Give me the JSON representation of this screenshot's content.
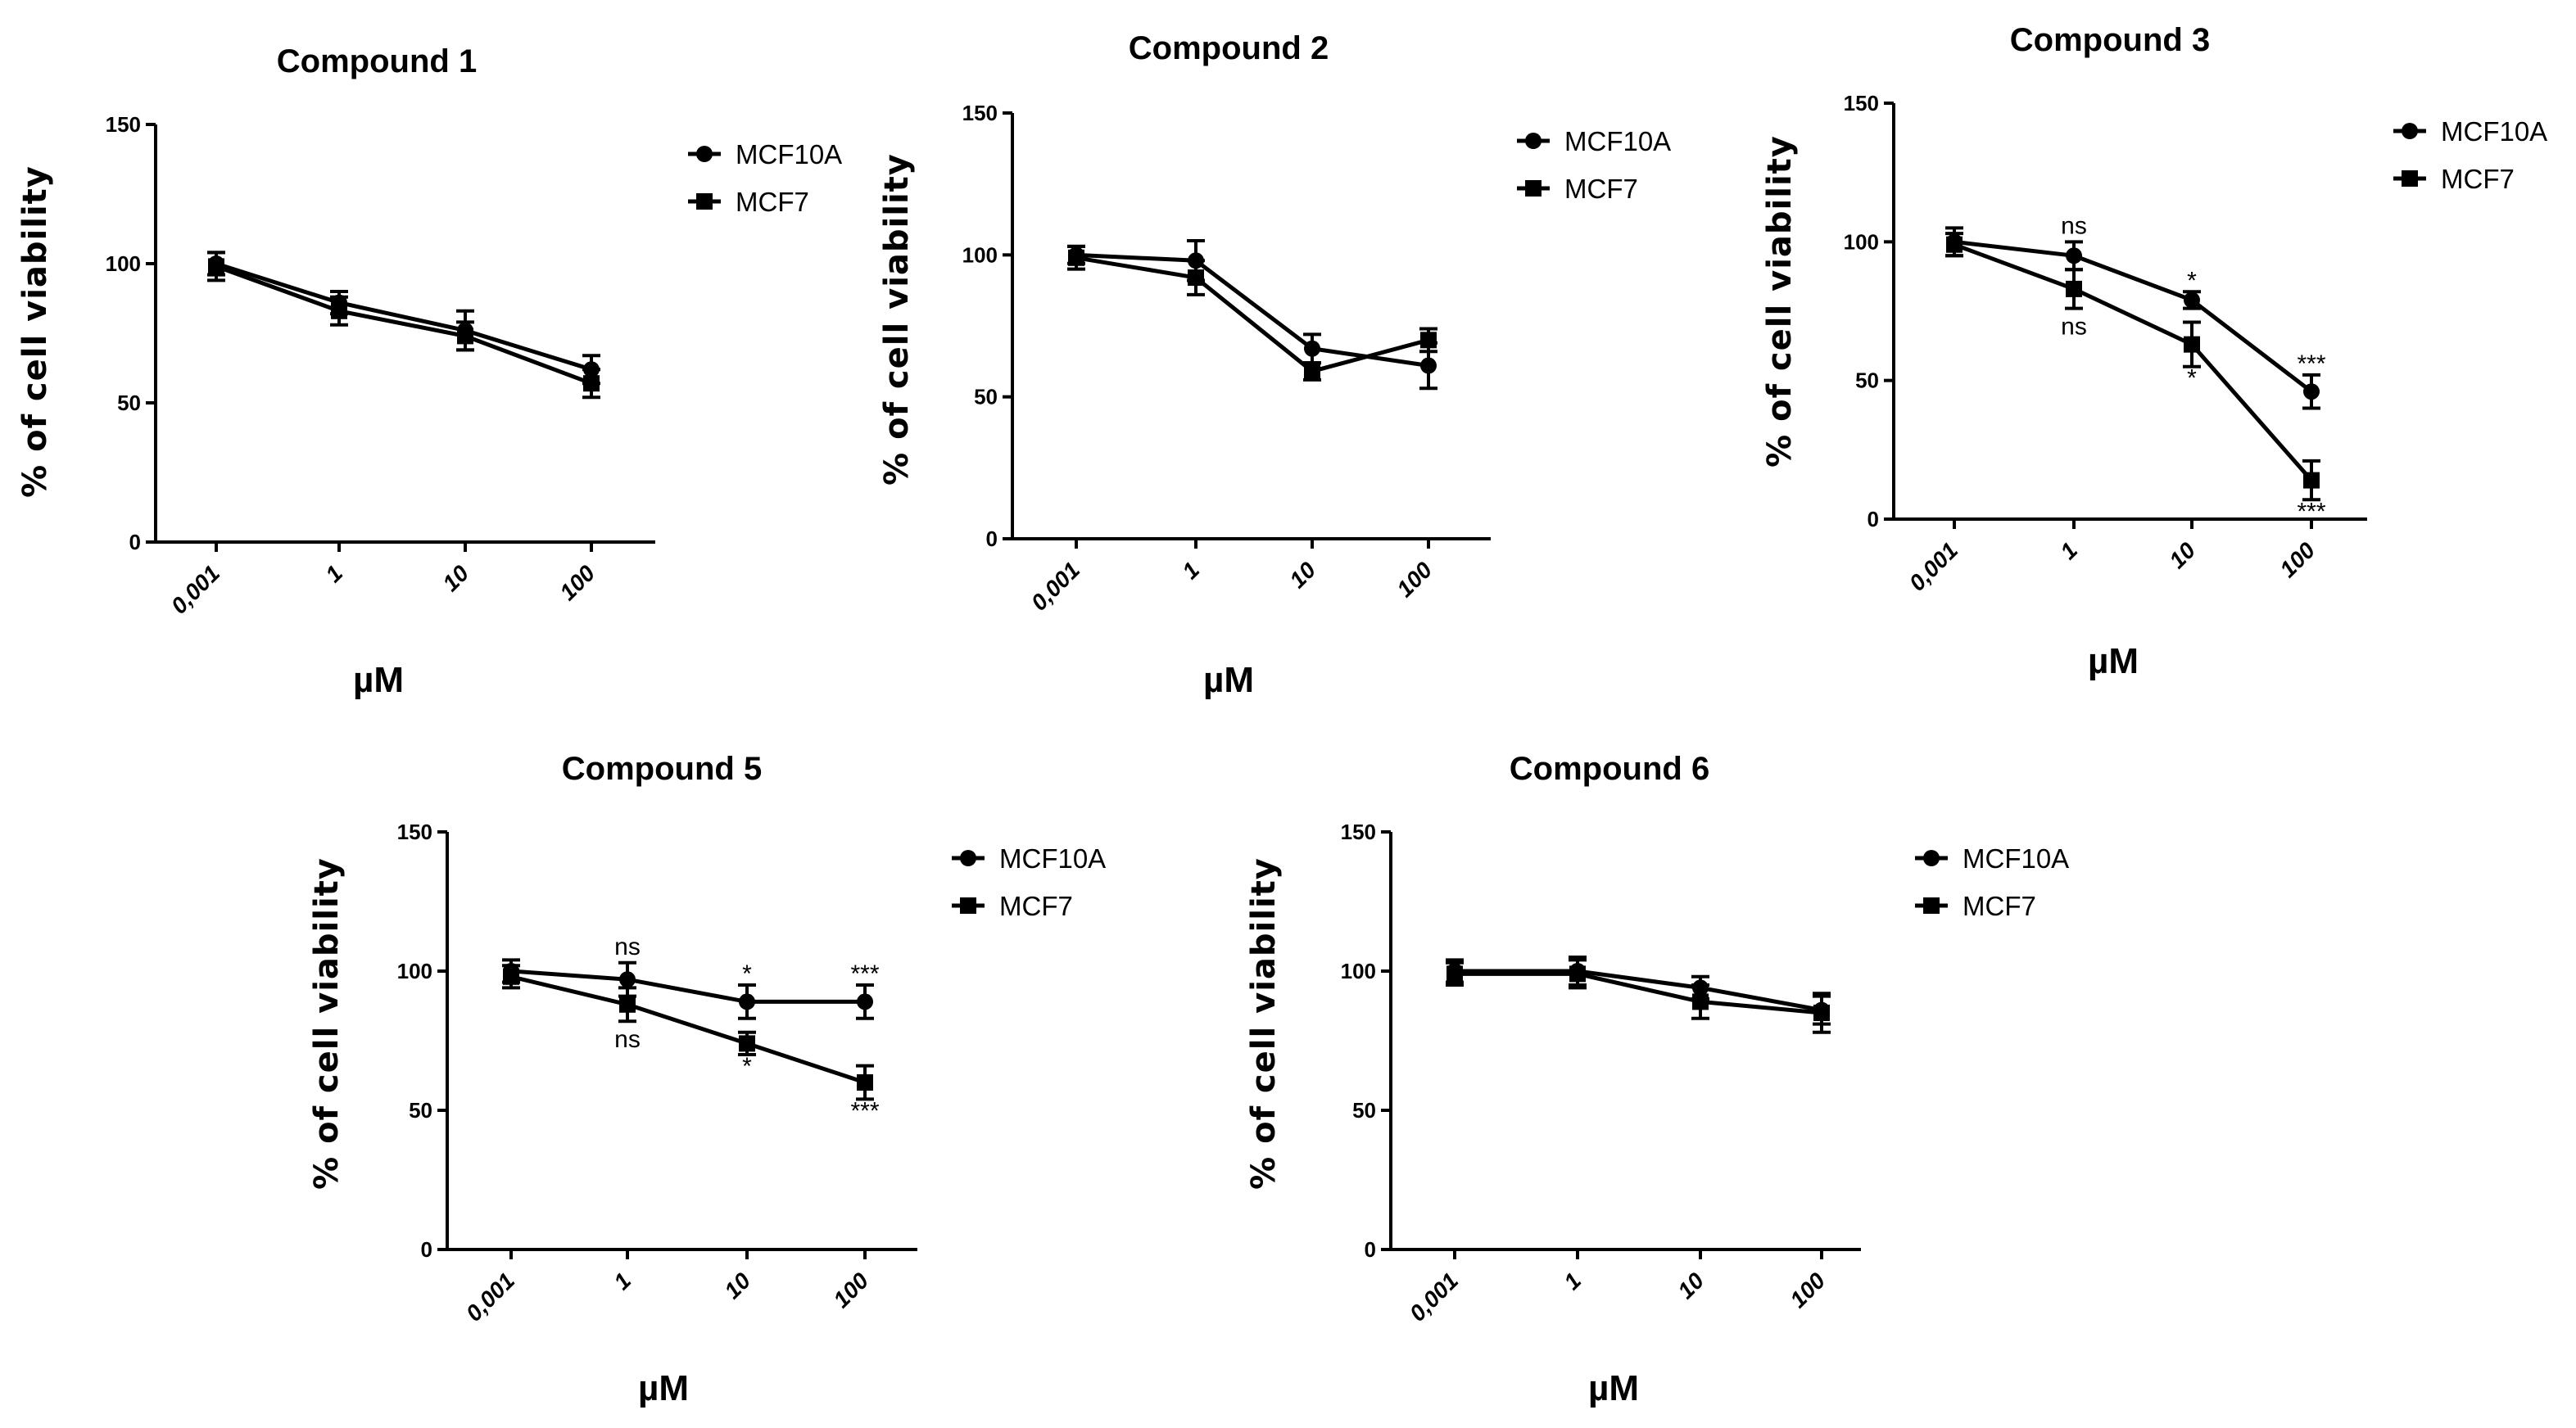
{
  "chart_data": [
    {
      "type": "line",
      "title": "Compound 1",
      "xlabel": "µM",
      "ylabel": "% of cell viability",
      "categories": [
        "0,001",
        "1",
        "10",
        "100"
      ],
      "ylim": [
        0,
        150
      ],
      "yticks": [
        "0",
        "50",
        "100",
        "150"
      ],
      "legend": "top-right",
      "series": [
        {
          "name": "MCF10A",
          "marker": "circle",
          "values": [
            100,
            86,
            76,
            62
          ],
          "errors": [
            4,
            4,
            7,
            5
          ],
          "annotations": [
            "",
            "",
            "",
            ""
          ]
        },
        {
          "name": "MCF7",
          "marker": "square",
          "values": [
            99,
            83,
            74,
            57
          ],
          "errors": [
            5,
            5,
            5,
            5
          ],
          "annotations": [
            "",
            "",
            "",
            ""
          ]
        }
      ]
    },
    {
      "type": "line",
      "title": "Compound 2",
      "xlabel": "µM",
      "ylabel": "% of cell viability",
      "categories": [
        "0,001",
        "1",
        "10",
        "100"
      ],
      "ylim": [
        0,
        150
      ],
      "yticks": [
        "0",
        "50",
        "100",
        "150"
      ],
      "legend": "top-right",
      "series": [
        {
          "name": "MCF10A",
          "marker": "circle",
          "values": [
            100,
            98,
            67,
            61
          ],
          "errors": [
            3,
            7,
            5,
            8
          ],
          "annotations": [
            "",
            "",
            "",
            ""
          ]
        },
        {
          "name": "MCF7",
          "marker": "square",
          "values": [
            99,
            92,
            59,
            70
          ],
          "errors": [
            4,
            6,
            3,
            4
          ],
          "annotations": [
            "",
            "",
            "",
            ""
          ]
        }
      ]
    },
    {
      "type": "line",
      "title": "Compound 3",
      "xlabel": "µM",
      "ylabel": "% of cell viability",
      "categories": [
        "0,001",
        "1",
        "10",
        "100"
      ],
      "ylim": [
        0,
        150
      ],
      "yticks": [
        "0",
        "50",
        "100",
        "150"
      ],
      "legend": "top-right",
      "series": [
        {
          "name": "MCF10A",
          "marker": "circle",
          "values": [
            100,
            95,
            79,
            46
          ],
          "errors": [
            5,
            5,
            3,
            6
          ],
          "annotations": [
            "",
            "ns",
            "*",
            "***"
          ]
        },
        {
          "name": "MCF7",
          "marker": "square",
          "values": [
            99,
            83,
            63,
            14
          ],
          "errors": [
            4,
            7,
            8,
            7
          ],
          "annotations": [
            "",
            "ns",
            "*",
            "***"
          ]
        }
      ]
    },
    {
      "type": "line",
      "title": "Compound 5",
      "xlabel": "µM",
      "ylabel": "% of cell viability",
      "categories": [
        "0,001",
        "1",
        "10",
        "100"
      ],
      "ylim": [
        0,
        150
      ],
      "yticks": [
        "0",
        "50",
        "100",
        "150"
      ],
      "legend": "top-right",
      "series": [
        {
          "name": "MCF10A",
          "marker": "circle",
          "values": [
            100,
            97,
            89,
            89
          ],
          "errors": [
            4,
            6,
            6,
            6
          ],
          "annotations": [
            "",
            "ns",
            "*",
            "***"
          ]
        },
        {
          "name": "MCF7",
          "marker": "square",
          "values": [
            98,
            88,
            74,
            60
          ],
          "errors": [
            4,
            6,
            4,
            6
          ],
          "annotations": [
            "",
            "ns",
            "*",
            "***"
          ]
        }
      ]
    },
    {
      "type": "line",
      "title": "Compound  6",
      "xlabel": "µM",
      "ylabel": "% of cell viability",
      "categories": [
        "0,001",
        "1",
        "10",
        "100"
      ],
      "ylim": [
        0,
        150
      ],
      "yticks": [
        "0",
        "50",
        "100",
        "150"
      ],
      "legend": "top-right",
      "series": [
        {
          "name": "MCF10A",
          "marker": "circle",
          "values": [
            100,
            100,
            94,
            86
          ],
          "errors": [
            4,
            5,
            4,
            5
          ],
          "annotations": [
            "",
            "",
            "",
            ""
          ]
        },
        {
          "name": "MCF7",
          "marker": "square",
          "values": [
            99,
            99,
            89,
            85
          ],
          "errors": [
            4,
            5,
            6,
            7
          ],
          "annotations": [
            "",
            "",
            "",
            ""
          ]
        }
      ]
    }
  ]
}
